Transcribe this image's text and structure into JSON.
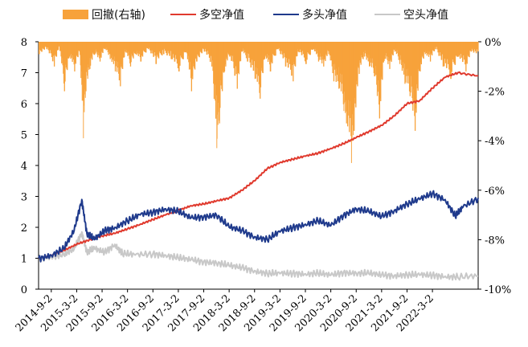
{
  "chart_data": {
    "type": "line",
    "legend": {
      "position": "top",
      "items": [
        {
          "label": "回撤(右轴)",
          "kind": "bar",
          "color": "#F7A23B"
        },
        {
          "label": "多空净值",
          "kind": "line",
          "color": "#E03A2E"
        },
        {
          "label": "多头净值",
          "kind": "line",
          "color": "#1F3A8C"
        },
        {
          "label": "空头净值",
          "kind": "line",
          "color": "#C8C8C8"
        }
      ]
    },
    "x_categories": [
      "2014-9-2",
      "2015-3-2",
      "2015-9-2",
      "2016-3-2",
      "2016-9-2",
      "2017-3-2",
      "2017-9-2",
      "2018-3-2",
      "2018-9-2",
      "2019-3-2",
      "2019-9-2",
      "2020-3-2",
      "2020-9-2",
      "2021-3-2",
      "2021-9-2",
      "2022-3-2"
    ],
    "x_range": [
      0,
      17.3
    ],
    "y_left": {
      "min": 0,
      "max": 8,
      "ticks": [
        "0",
        "1",
        "2",
        "3",
        "4",
        "5",
        "6",
        "7",
        "8"
      ]
    },
    "y_right": {
      "min": -0.1,
      "max": 0,
      "ticks": [
        "0%",
        "-2%",
        "-4%",
        "-6%",
        "-8%",
        "-10%"
      ]
    },
    "grid": false,
    "series": [
      {
        "name": "多空净值",
        "color": "#E03A2E",
        "axis": "left",
        "points": [
          [
            0,
            1.0
          ],
          [
            0.5,
            1.1
          ],
          [
            1,
            1.25
          ],
          [
            1.5,
            1.45
          ],
          [
            2,
            1.6
          ],
          [
            2.5,
            1.72
          ],
          [
            3,
            1.8
          ],
          [
            3.5,
            1.95
          ],
          [
            4,
            2.1
          ],
          [
            4.5,
            2.25
          ],
          [
            5,
            2.4
          ],
          [
            5.5,
            2.55
          ],
          [
            6,
            2.7
          ],
          [
            6.5,
            2.75
          ],
          [
            7,
            2.85
          ],
          [
            7.5,
            2.95
          ],
          [
            8,
            3.2
          ],
          [
            8.5,
            3.5
          ],
          [
            9,
            3.9
          ],
          [
            9.5,
            4.1
          ],
          [
            10,
            4.2
          ],
          [
            10.5,
            4.3
          ],
          [
            11,
            4.4
          ],
          [
            11.5,
            4.55
          ],
          [
            12,
            4.7
          ],
          [
            12.5,
            4.9
          ],
          [
            13,
            5.1
          ],
          [
            13.5,
            5.3
          ],
          [
            14,
            5.6
          ],
          [
            14.5,
            6.0
          ],
          [
            15,
            6.1
          ],
          [
            15.5,
            6.5
          ],
          [
            16,
            6.85
          ],
          [
            16.5,
            7.0
          ],
          [
            17.3,
            6.9
          ]
        ]
      },
      {
        "name": "多头净值",
        "color": "#1F3A8C",
        "axis": "left",
        "points": [
          [
            0,
            1.0
          ],
          [
            0.5,
            1.1
          ],
          [
            1,
            1.3
          ],
          [
            1.4,
            1.9
          ],
          [
            1.7,
            2.9
          ],
          [
            1.9,
            1.8
          ],
          [
            2.2,
            1.6
          ],
          [
            2.6,
            1.9
          ],
          [
            3.0,
            2.0
          ],
          [
            3.5,
            2.2
          ],
          [
            4.0,
            2.4
          ],
          [
            4.5,
            2.5
          ],
          [
            5.0,
            2.6
          ],
          [
            5.5,
            2.5
          ],
          [
            6.0,
            2.3
          ],
          [
            6.5,
            2.35
          ],
          [
            7.0,
            2.4
          ],
          [
            7.5,
            2.0
          ],
          [
            8.0,
            1.9
          ],
          [
            8.5,
            1.7
          ],
          [
            9.0,
            1.6
          ],
          [
            9.5,
            1.85
          ],
          [
            10.0,
            2.0
          ],
          [
            10.5,
            2.1
          ],
          [
            11.0,
            2.2
          ],
          [
            11.5,
            2.05
          ],
          [
            12.0,
            2.4
          ],
          [
            12.5,
            2.6
          ],
          [
            13.0,
            2.5
          ],
          [
            13.5,
            2.35
          ],
          [
            14.0,
            2.55
          ],
          [
            14.5,
            2.75
          ],
          [
            15.0,
            2.9
          ],
          [
            15.5,
            3.1
          ],
          [
            16.0,
            2.9
          ],
          [
            16.4,
            2.35
          ],
          [
            16.7,
            2.65
          ],
          [
            17.3,
            2.95
          ]
        ]
      },
      {
        "name": "空头净值",
        "color": "#C8C8C8",
        "axis": "left",
        "points": [
          [
            0,
            1.0
          ],
          [
            0.5,
            1.05
          ],
          [
            1,
            1.1
          ],
          [
            1.4,
            1.3
          ],
          [
            1.7,
            1.85
          ],
          [
            1.9,
            1.2
          ],
          [
            2.2,
            1.3
          ],
          [
            2.6,
            1.2
          ],
          [
            3.0,
            1.45
          ],
          [
            3.3,
            1.15
          ],
          [
            3.8,
            1.1
          ],
          [
            4.5,
            1.15
          ],
          [
            5.0,
            1.1
          ],
          [
            5.5,
            1.0
          ],
          [
            6.0,
            0.95
          ],
          [
            6.5,
            0.9
          ],
          [
            7.0,
            0.85
          ],
          [
            7.5,
            0.75
          ],
          [
            8.0,
            0.7
          ],
          [
            8.5,
            0.6
          ],
          [
            9.0,
            0.5
          ],
          [
            9.5,
            0.5
          ],
          [
            10.0,
            0.52
          ],
          [
            10.5,
            0.5
          ],
          [
            11.0,
            0.5
          ],
          [
            11.5,
            0.45
          ],
          [
            12.0,
            0.55
          ],
          [
            12.5,
            0.52
          ],
          [
            13.0,
            0.5
          ],
          [
            13.5,
            0.46
          ],
          [
            14.0,
            0.45
          ],
          [
            14.5,
            0.46
          ],
          [
            15.0,
            0.45
          ],
          [
            15.5,
            0.46
          ],
          [
            16.0,
            0.42
          ],
          [
            16.5,
            0.38
          ],
          [
            17.3,
            0.42
          ]
        ]
      },
      {
        "name": "回撤(右轴)",
        "color": "#F7A23B",
        "axis": "right",
        "points": [
          [
            0,
            -0.005
          ],
          [
            0.3,
            -0.003
          ],
          [
            0.6,
            -0.01
          ],
          [
            0.8,
            -0.002
          ],
          [
            1.0,
            -0.02
          ],
          [
            1.2,
            -0.006
          ],
          [
            1.4,
            -0.012
          ],
          [
            1.6,
            -0.004
          ],
          [
            1.75,
            -0.039
          ],
          [
            1.85,
            -0.02
          ],
          [
            2.0,
            -0.011
          ],
          [
            2.2,
            -0.005
          ],
          [
            2.4,
            -0.008
          ],
          [
            2.6,
            -0.003
          ],
          [
            2.8,
            -0.007
          ],
          [
            3.0,
            -0.012
          ],
          [
            3.2,
            -0.018
          ],
          [
            3.4,
            -0.004
          ],
          [
            3.6,
            -0.01
          ],
          [
            3.8,
            -0.005
          ],
          [
            4.0,
            -0.008
          ],
          [
            4.3,
            -0.003
          ],
          [
            4.6,
            -0.009
          ],
          [
            4.9,
            -0.005
          ],
          [
            5.2,
            -0.007
          ],
          [
            5.5,
            -0.012
          ],
          [
            5.8,
            -0.004
          ],
          [
            6.0,
            -0.02
          ],
          [
            6.2,
            -0.008
          ],
          [
            6.5,
            -0.004
          ],
          [
            6.8,
            -0.01
          ],
          [
            7.0,
            -0.043
          ],
          [
            7.1,
            -0.033
          ],
          [
            7.3,
            -0.012
          ],
          [
            7.5,
            -0.006
          ],
          [
            7.8,
            -0.019
          ],
          [
            8.0,
            -0.004
          ],
          [
            8.2,
            -0.008
          ],
          [
            8.5,
            -0.015
          ],
          [
            8.7,
            -0.023
          ],
          [
            8.9,
            -0.006
          ],
          [
            9.1,
            -0.012
          ],
          [
            9.4,
            -0.003
          ],
          [
            9.7,
            -0.01
          ],
          [
            10.0,
            -0.016
          ],
          [
            10.2,
            -0.004
          ],
          [
            10.5,
            -0.009
          ],
          [
            10.8,
            -0.003
          ],
          [
            11.0,
            -0.008
          ],
          [
            11.2,
            -0.01
          ],
          [
            11.4,
            -0.005
          ],
          [
            11.6,
            -0.016
          ],
          [
            11.8,
            -0.019
          ],
          [
            12.0,
            -0.028
          ],
          [
            12.1,
            -0.033
          ],
          [
            12.3,
            -0.049
          ],
          [
            12.4,
            -0.036
          ],
          [
            12.6,
            -0.013
          ],
          [
            12.8,
            -0.006
          ],
          [
            13.0,
            -0.01
          ],
          [
            13.2,
            -0.014
          ],
          [
            13.4,
            -0.031
          ],
          [
            13.6,
            -0.007
          ],
          [
            13.8,
            -0.011
          ],
          [
            14.0,
            -0.004
          ],
          [
            14.2,
            -0.009
          ],
          [
            14.4,
            -0.017
          ],
          [
            14.6,
            -0.022
          ],
          [
            14.8,
            -0.036
          ],
          [
            15.0,
            -0.012
          ],
          [
            15.2,
            -0.005
          ],
          [
            15.4,
            -0.008
          ],
          [
            15.6,
            -0.003
          ],
          [
            15.9,
            -0.01
          ],
          [
            16.2,
            -0.015
          ],
          [
            16.5,
            -0.006
          ],
          [
            16.8,
            -0.012
          ],
          [
            17.0,
            -0.004
          ],
          [
            17.3,
            -0.006
          ]
        ]
      }
    ]
  }
}
